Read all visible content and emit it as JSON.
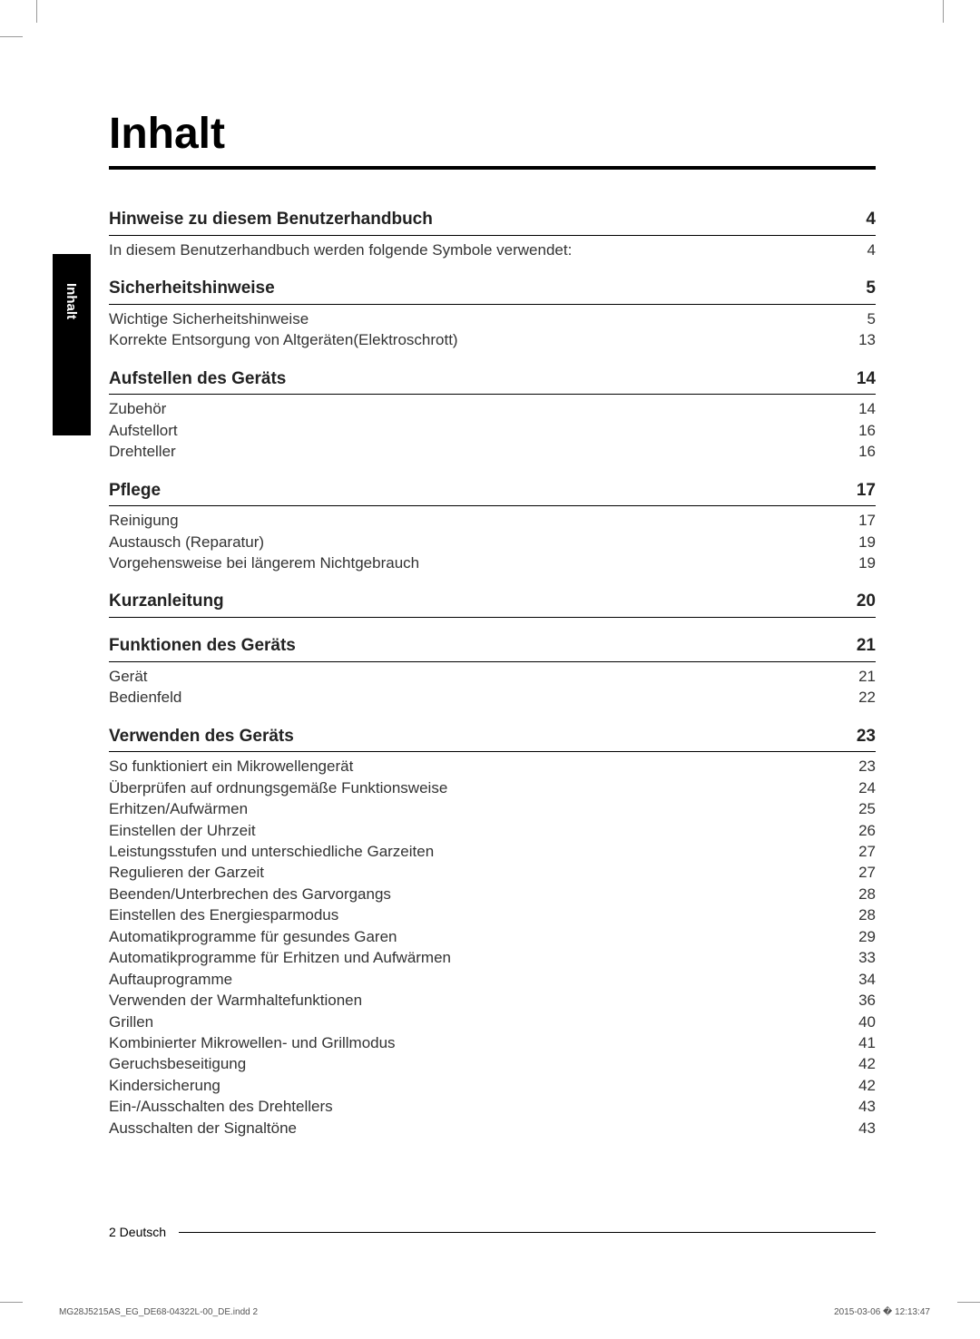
{
  "sideTab": {
    "label": "Inhalt"
  },
  "title": "Inhalt",
  "sections": [
    {
      "head": {
        "title": "Hinweise zu diesem Benutzerhandbuch",
        "page": "4"
      },
      "subs": [
        {
          "title": "In diesem Benutzerhandbuch werden folgende Symbole verwendet:",
          "page": "4"
        }
      ]
    },
    {
      "head": {
        "title": "Sicherheitshinweise",
        "page": "5"
      },
      "subs": [
        {
          "title": "Wichtige Sicherheitshinweise",
          "page": "5"
        },
        {
          "title": "Korrekte Entsorgung von Altgeräten(Elektroschrott)",
          "page": "13"
        }
      ]
    },
    {
      "head": {
        "title": "Aufstellen des Geräts",
        "page": "14"
      },
      "subs": [
        {
          "title": "Zubehör",
          "page": "14"
        },
        {
          "title": "Aufstellort",
          "page": "16"
        },
        {
          "title": "Drehteller",
          "page": "16"
        }
      ]
    },
    {
      "head": {
        "title": "Pflege",
        "page": "17"
      },
      "subs": [
        {
          "title": "Reinigung",
          "page": "17"
        },
        {
          "title": "Austausch (Reparatur)",
          "page": "19"
        },
        {
          "title": "Vorgehensweise bei längerem Nichtgebrauch",
          "page": "19"
        }
      ]
    },
    {
      "head": {
        "title": "Kurzanleitung",
        "page": "20"
      },
      "subs": []
    },
    {
      "head": {
        "title": "Funktionen des Geräts",
        "page": "21"
      },
      "subs": [
        {
          "title": "Gerät",
          "page": "21"
        },
        {
          "title": "Bedienfeld",
          "page": "22"
        }
      ]
    },
    {
      "head": {
        "title": "Verwenden des Geräts",
        "page": "23"
      },
      "subs": [
        {
          "title": "So funktioniert ein Mikrowellengerät",
          "page": "23"
        },
        {
          "title": "Überprüfen auf ordnungsgemäße Funktionsweise",
          "page": "24"
        },
        {
          "title": "Erhitzen/Aufwärmen",
          "page": "25"
        },
        {
          "title": "Einstellen der Uhrzeit",
          "page": "26"
        },
        {
          "title": "Leistungsstufen und unterschiedliche Garzeiten",
          "page": "27"
        },
        {
          "title": "Regulieren der Garzeit",
          "page": "27"
        },
        {
          "title": "Beenden/Unterbrechen des Garvorgangs",
          "page": "28"
        },
        {
          "title": "Einstellen des Energiesparmodus",
          "page": "28"
        },
        {
          "title": "Automatikprogramme für gesundes Garen",
          "page": "29"
        },
        {
          "title": "Automatikprogramme für Erhitzen und Aufwärmen",
          "page": "33"
        },
        {
          "title": "Auftauprogramme",
          "page": "34"
        },
        {
          "title": "Verwenden der Warmhaltefunktionen",
          "page": "36"
        },
        {
          "title": "Grillen",
          "page": "40"
        },
        {
          "title": "Kombinierter Mikrowellen- und Grillmodus",
          "page": "41"
        },
        {
          "title": "Geruchsbeseitigung",
          "page": "42"
        },
        {
          "title": "Kindersicherung",
          "page": "42"
        },
        {
          "title": "Ein-/Ausschalten des Drehtellers",
          "page": "43"
        },
        {
          "title": "Ausschalten der Signaltöne",
          "page": "43"
        }
      ]
    }
  ],
  "footer": {
    "pageLabel": "2 Deutsch"
  },
  "imprint": {
    "file": "MG28J5215AS_EG_DE68-04322L-00_DE.indd   2",
    "timestamp": "2015-03-06   � 12:13:47"
  }
}
